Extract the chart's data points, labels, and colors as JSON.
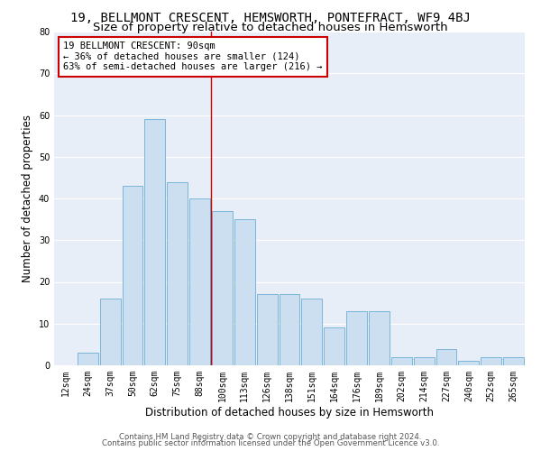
{
  "title": "19, BELLMONT CRESCENT, HEMSWORTH, PONTEFRACT, WF9 4BJ",
  "subtitle": "Size of property relative to detached houses in Hemsworth",
  "xlabel": "Distribution of detached houses by size in Hemsworth",
  "ylabel": "Number of detached properties",
  "categories": [
    "12sqm",
    "24sqm",
    "37sqm",
    "50sqm",
    "62sqm",
    "75sqm",
    "88sqm",
    "100sqm",
    "113sqm",
    "126sqm",
    "138sqm",
    "151sqm",
    "164sqm",
    "176sqm",
    "189sqm",
    "202sqm",
    "214sqm",
    "227sqm",
    "240sqm",
    "252sqm",
    "265sqm"
  ],
  "values": [
    0,
    3,
    16,
    43,
    59,
    44,
    40,
    37,
    35,
    17,
    17,
    16,
    9,
    13,
    13,
    2,
    2,
    4,
    1,
    2,
    2
  ],
  "bar_color": "#ccdff0",
  "bar_edge_color": "#6baed6",
  "vline_x_index": 6,
  "vline_color": "#cc0000",
  "annotation_box_text": "19 BELLMONT CRESCENT: 90sqm\n← 36% of detached houses are smaller (124)\n63% of semi-detached houses are larger (216) →",
  "annotation_box_color": "#cc0000",
  "annotation_box_bg": "#ffffff",
  "ylim": [
    0,
    80
  ],
  "yticks": [
    0,
    10,
    20,
    30,
    40,
    50,
    60,
    70,
    80
  ],
  "bg_color": "#e8eef7",
  "grid_color": "#ffffff",
  "footer_line1": "Contains HM Land Registry data © Crown copyright and database right 2024.",
  "footer_line2": "Contains public sector information licensed under the Open Government Licence v3.0.",
  "title_fontsize": 10,
  "subtitle_fontsize": 9.5,
  "tick_fontsize": 7,
  "ylabel_fontsize": 8.5,
  "xlabel_fontsize": 8.5,
  "footer_fontsize": 6.2
}
